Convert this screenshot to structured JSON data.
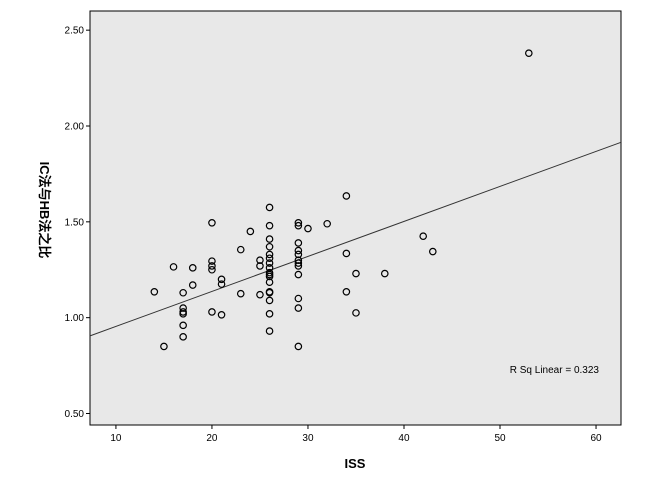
{
  "chart_data": {
    "type": "scatter",
    "xlabel": "ISS",
    "ylabel": "IC法与HB法之比",
    "xlim": [
      7.3,
      62.6
    ],
    "ylim": [
      0.44,
      2.6
    ],
    "x_ticks": [
      10,
      20,
      30,
      40,
      50,
      60
    ],
    "y_ticks": [
      0.5,
      1.0,
      1.5,
      2.0,
      2.5
    ],
    "x_tick_labels": [
      "10",
      "20",
      "30",
      "40",
      "50",
      "60"
    ],
    "y_tick_labels": [
      "0.50",
      "1.00",
      "1.50",
      "2.00",
      "2.50"
    ],
    "grid": false,
    "background": "#e8e8e8",
    "marker": "open-circle",
    "fit_line": {
      "x": [
        7.3,
        62.6
      ],
      "y": [
        0.905,
        1.915
      ]
    },
    "annotation": "R Sq Linear = 0.323",
    "points": [
      [
        14,
        1.135
      ],
      [
        15,
        0.85
      ],
      [
        16,
        1.265
      ],
      [
        17,
        1.13
      ],
      [
        17,
        1.05
      ],
      [
        17,
        1.03
      ],
      [
        17,
        1.02
      ],
      [
        17,
        0.96
      ],
      [
        17,
        0.9
      ],
      [
        18,
        1.26
      ],
      [
        18,
        1.17
      ],
      [
        20,
        1.495
      ],
      [
        20,
        1.295
      ],
      [
        20,
        1.27
      ],
      [
        20,
        1.25
      ],
      [
        20,
        1.03
      ],
      [
        21,
        1.2
      ],
      [
        21,
        1.175
      ],
      [
        21,
        1.015
      ],
      [
        23,
        1.355
      ],
      [
        23,
        1.125
      ],
      [
        24,
        1.45
      ],
      [
        25,
        1.3
      ],
      [
        25,
        1.27
      ],
      [
        25,
        1.12
      ],
      [
        26,
        1.575
      ],
      [
        26,
        1.48
      ],
      [
        26,
        1.41
      ],
      [
        26,
        1.37
      ],
      [
        26,
        1.33
      ],
      [
        26,
        1.31
      ],
      [
        26,
        1.285
      ],
      [
        26,
        1.26
      ],
      [
        26,
        1.235
      ],
      [
        26,
        1.225
      ],
      [
        26,
        1.215
      ],
      [
        26,
        1.185
      ],
      [
        26,
        1.135
      ],
      [
        26,
        1.13
      ],
      [
        26,
        1.09
      ],
      [
        26,
        1.02
      ],
      [
        26,
        0.93
      ],
      [
        29,
        1.495
      ],
      [
        29,
        1.48
      ],
      [
        29,
        1.39
      ],
      [
        29,
        1.35
      ],
      [
        29,
        1.33
      ],
      [
        29,
        1.3
      ],
      [
        29,
        1.285
      ],
      [
        29,
        1.27
      ],
      [
        29,
        1.225
      ],
      [
        29,
        1.1
      ],
      [
        29,
        1.05
      ],
      [
        29,
        0.85
      ],
      [
        30,
        1.465
      ],
      [
        32,
        1.49
      ],
      [
        34,
        1.635
      ],
      [
        34,
        1.335
      ],
      [
        34,
        1.135
      ],
      [
        35,
        1.23
      ],
      [
        35,
        1.025
      ],
      [
        38,
        1.23
      ],
      [
        42,
        1.425
      ],
      [
        43,
        1.345
      ],
      [
        53,
        2.38
      ]
    ]
  }
}
